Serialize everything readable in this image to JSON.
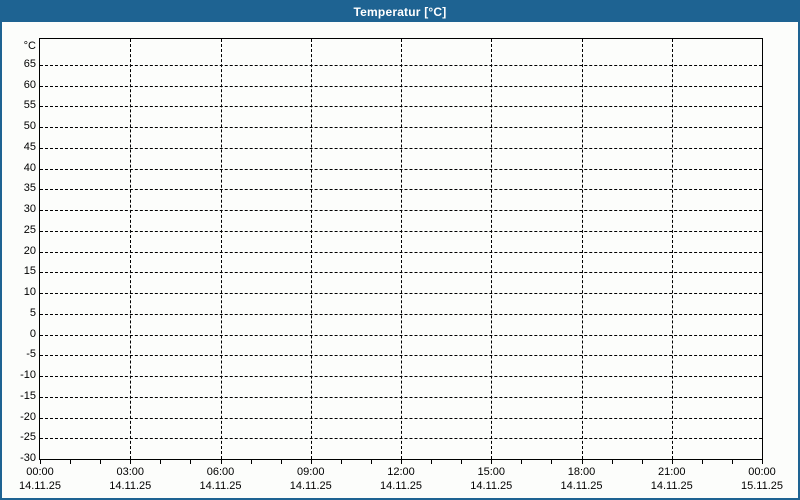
{
  "window": {
    "title": "Temperatur [°C]"
  },
  "colors": {
    "frame_blue": "#1e6392",
    "titlebar_text": "#ffffff",
    "background": "#fcfdfb",
    "grid": "#000000",
    "label_text": "#000000"
  },
  "chart_data": {
    "type": "line",
    "title": "Temperatur [°C]",
    "y_unit": "°C",
    "ylabel": "°C",
    "xlabel": "",
    "ylim": [
      -30,
      71.25
    ],
    "yticks": [
      65,
      60,
      55,
      50,
      45,
      40,
      35,
      30,
      25,
      20,
      15,
      10,
      5,
      0,
      -5,
      -10,
      -15,
      -20,
      -25,
      -30
    ],
    "xlim_hours": [
      0,
      24
    ],
    "x_minor_tick_step_hours": 1,
    "grid_style": "dashed",
    "legend": "none",
    "x_labels": [
      {
        "hour": 0,
        "time": "00:00",
        "date": "14.11.25"
      },
      {
        "hour": 3,
        "time": "03:00",
        "date": "14.11.25"
      },
      {
        "hour": 6,
        "time": "06:00",
        "date": "14.11.25"
      },
      {
        "hour": 9,
        "time": "09:00",
        "date": "14.11.25"
      },
      {
        "hour": 12,
        "time": "12:00",
        "date": "14.11.25"
      },
      {
        "hour": 15,
        "time": "15:00",
        "date": "14.11.25"
      },
      {
        "hour": 18,
        "time": "18:00",
        "date": "14.11.25"
      },
      {
        "hour": 21,
        "time": "21:00",
        "date": "14.11.25"
      },
      {
        "hour": 24,
        "time": "00:00",
        "date": "15.11.25"
      }
    ],
    "series": []
  }
}
